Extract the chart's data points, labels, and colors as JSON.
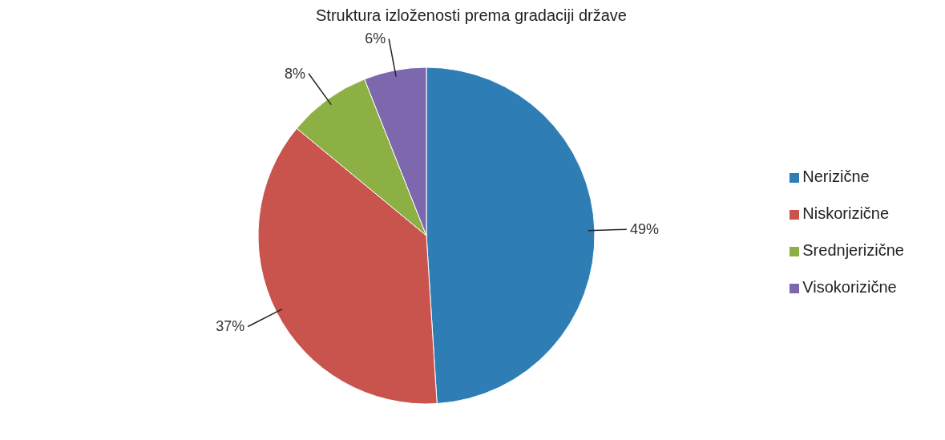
{
  "chart_data": {
    "type": "pie",
    "title": "Struktura izloženosti prema gradaciji države",
    "categories": [
      "Nerizične",
      "Niskorizične",
      "Srednjerizične",
      "Visokorizične"
    ],
    "values": [
      49,
      37,
      8,
      6
    ],
    "value_labels": [
      "49%",
      "37%",
      "8%",
      "6%"
    ],
    "colors": [
      "#2e7db5",
      "#c9534d",
      "#8cb043",
      "#7d68ad"
    ],
    "legend": "right"
  }
}
